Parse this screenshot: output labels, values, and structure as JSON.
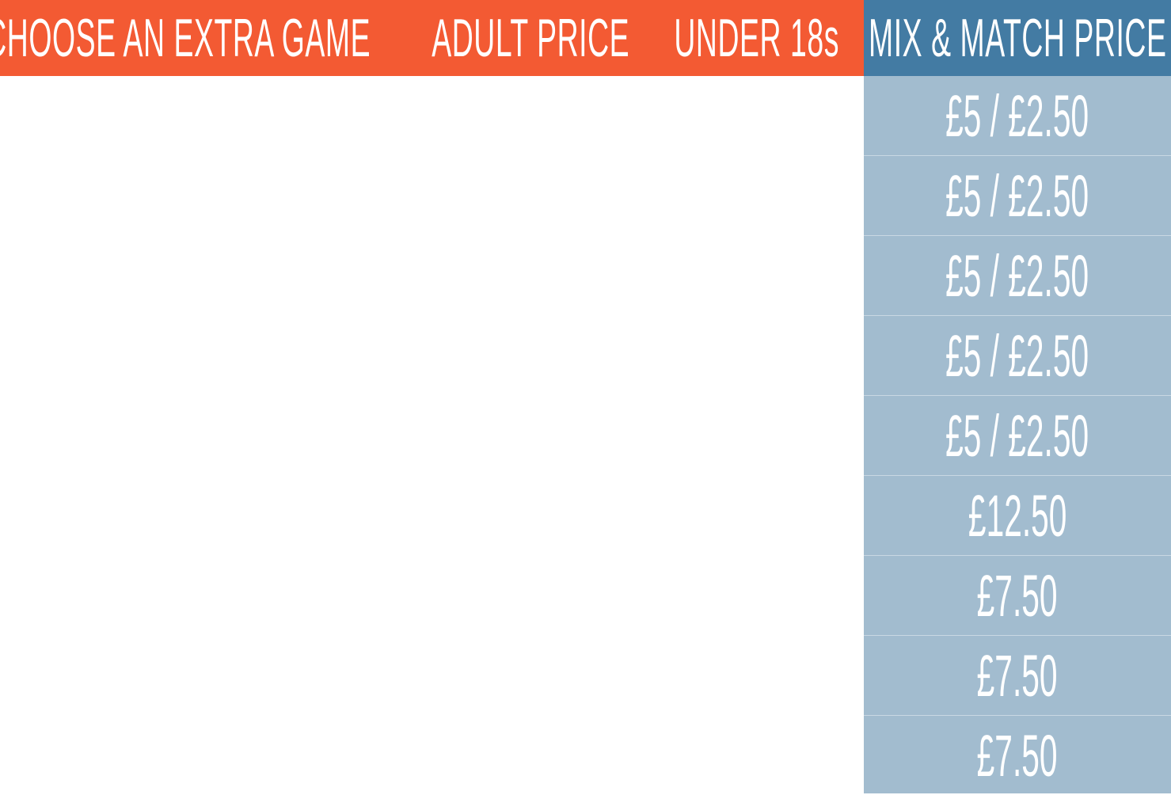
{
  "header": {
    "choose_game": "CHOOSE AN EXTRA GAME",
    "adult_price": "ADULT PRICE",
    "under_18s": "UNDER 18s",
    "mix_match_price": "MIX & MATCH PRICE"
  },
  "colors": {
    "orange": "#f35a33",
    "blue": "#437ba3",
    "light_blue": "#a2bccf"
  },
  "mix_match_prices": [
    "£5 / £2.50",
    "£5 / £2.50",
    "£5 / £2.50",
    "£5 / £2.50",
    "£5 / £2.50",
    "£12.50",
    "£7.50",
    "£7.50",
    "£7.50"
  ]
}
